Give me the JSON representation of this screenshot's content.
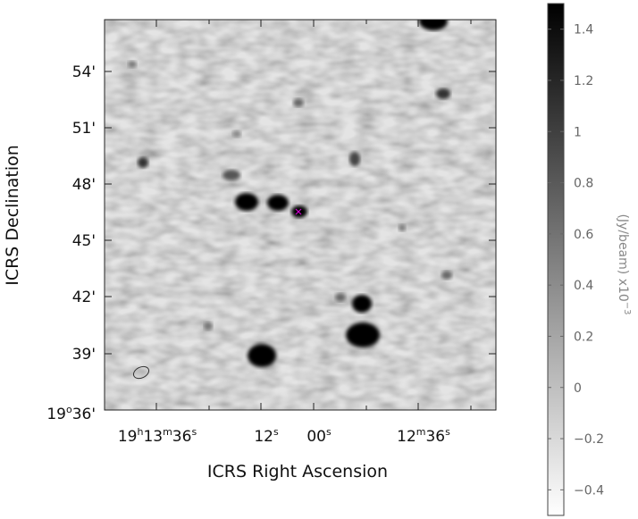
{
  "axes": {
    "x_title": "ICRS Right Ascension",
    "y_title": "ICRS Declination",
    "x_ticks": [
      {
        "h": "19",
        "hu": "h",
        "m": "13",
        "mu": "m",
        "s": "36",
        "su": "s"
      },
      {
        "s": "12",
        "su": "s"
      },
      {
        "s": "00",
        "su": "s"
      },
      {
        "m": "12",
        "mu": "m",
        "s": "36",
        "su": "s"
      }
    ],
    "y_ticks": [
      {
        "label": "54'"
      },
      {
        "label": "51'"
      },
      {
        "label": "48'"
      },
      {
        "label": "45'"
      },
      {
        "label": "42'"
      },
      {
        "label": "39'"
      },
      {
        "deg": "19",
        "deg_unit": "o",
        "min": "36'"
      }
    ]
  },
  "colorbar": {
    "title": "(Jy/beam)  x10",
    "exponent": "−3",
    "tick_labels": [
      "1.4",
      "1.2",
      "1",
      "0.8",
      "0.6",
      "0.4",
      "0.2",
      "0",
      "−0.2",
      "−0.4"
    ],
    "tick_values": [
      1.4,
      1.2,
      1.0,
      0.8,
      0.6,
      0.4,
      0.2,
      0.0,
      -0.2,
      -0.4
    ],
    "range": [
      -0.5,
      1.5
    ]
  },
  "colors": {
    "marker": "#cc00cc",
    "background": "#c4c4c4"
  }
}
